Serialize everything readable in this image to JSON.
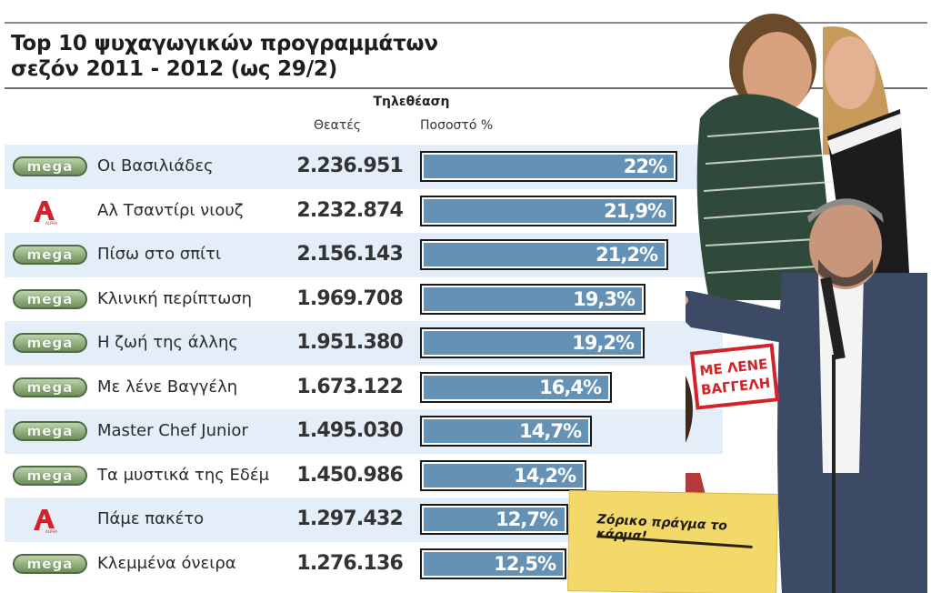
{
  "header": {
    "title_line1": "Top 10 ψυχαγωγικών προγραμμάτων",
    "title_line2": "σεζόν 2011 - 2012 (ως 29/2)",
    "group_label": "Τηλεθέαση",
    "col_viewers": "Θεατές",
    "col_share": "Ποσοστό %"
  },
  "colors": {
    "band": "#e3eef9",
    "bar_fill": "#6491b4",
    "bar_border": "#1a1a1a",
    "mega_green": "#6f8e5d",
    "alpha_red": "#d2232a"
  },
  "rows": [
    {
      "channel": "MEGA",
      "channel_icon": "mega-logo-icon",
      "name": "Οι Βασιλιάδες",
      "viewers": "2.236.951",
      "share": "22%"
    },
    {
      "channel": "ALPHA",
      "channel_icon": "alpha-logo-icon",
      "name": "Αλ Τσαντίρι νιουζ",
      "viewers": "2.232.874",
      "share": "21,9%"
    },
    {
      "channel": "MEGA",
      "channel_icon": "mega-logo-icon",
      "name": "Πίσω στο σπίτι",
      "viewers": "2.156.143",
      "share": "21,2%"
    },
    {
      "channel": "MEGA",
      "channel_icon": "mega-logo-icon",
      "name": "Κλινική περίπτωση",
      "viewers": "1.969.708",
      "share": "19,3%"
    },
    {
      "channel": "MEGA",
      "channel_icon": "mega-logo-icon",
      "name": "Η ζωή της άλλης",
      "viewers": "1.951.380",
      "share": "19,2%"
    },
    {
      "channel": "MEGA",
      "channel_icon": "mega-logo-icon",
      "name": "Με λένε Βαγγέλη",
      "viewers": "1.673.122",
      "share": "16,4%"
    },
    {
      "channel": "MEGA",
      "channel_icon": "mega-logo-icon",
      "name": "Master Chef Junior",
      "viewers": "1.495.030",
      "share": "14,7%"
    },
    {
      "channel": "MEGA",
      "channel_icon": "mega-logo-icon",
      "name": "Τα μυστικά της Εδέμ",
      "viewers": "1.450.986",
      "share": "14,2%"
    },
    {
      "channel": "ALPHA",
      "channel_icon": "alpha-logo-icon",
      "name": "Πάμε πακέτο",
      "viewers": "1.297.432",
      "share": "12,7%"
    },
    {
      "channel": "MEGA",
      "channel_icon": "mega-logo-icon",
      "name": "Κλεμμένα όνειρα",
      "viewers": "1.276.136",
      "share": "12,5%"
    }
  ],
  "logos": {
    "mega_text": "ᗰEGA",
    "alpha_text": "ALPHA"
  },
  "photo": {
    "stamp_line1": "ΜΕ ΛΕΝΕ",
    "stamp_line2": "ΒΑΓΓΕΛΗ",
    "sign_text": "Ζόρικο πράγμα το κάρμα!"
  },
  "chart_data": {
    "type": "bar",
    "orientation": "horizontal",
    "title": "Top 10 ψυχαγωγικών προγραμμάτων σεζόν 2011 - 2012 (ως 29/2)",
    "xlabel": "Ποσοστό %",
    "ylabel": "",
    "categories": [
      "Οι Βασιλιάδες",
      "Αλ Τσαντίρι νιουζ",
      "Πίσω στο σπίτι",
      "Κλινική περίπτωση",
      "Η ζωή της άλλης",
      "Με λένε Βαγγέλη",
      "Master Chef Junior",
      "Τα μυστικά της Εδέμ",
      "Πάμε πακέτο",
      "Κλεμμένα όνειρα"
    ],
    "channels": [
      "MEGA",
      "ALPHA",
      "MEGA",
      "MEGA",
      "MEGA",
      "MEGA",
      "MEGA",
      "MEGA",
      "ALPHA",
      "MEGA"
    ],
    "series": [
      {
        "name": "Θεατές",
        "values": [
          2236951,
          2232874,
          2156143,
          1969708,
          1951380,
          1673122,
          1495030,
          1450986,
          1297432,
          1276136
        ]
      },
      {
        "name": "Ποσοστό %",
        "values": [
          22,
          21.9,
          21.2,
          19.3,
          19.2,
          16.4,
          14.7,
          14.2,
          12.7,
          12.5
        ]
      }
    ],
    "group_header": "Τηλεθέαση",
    "grid": false,
    "legend": "none"
  }
}
